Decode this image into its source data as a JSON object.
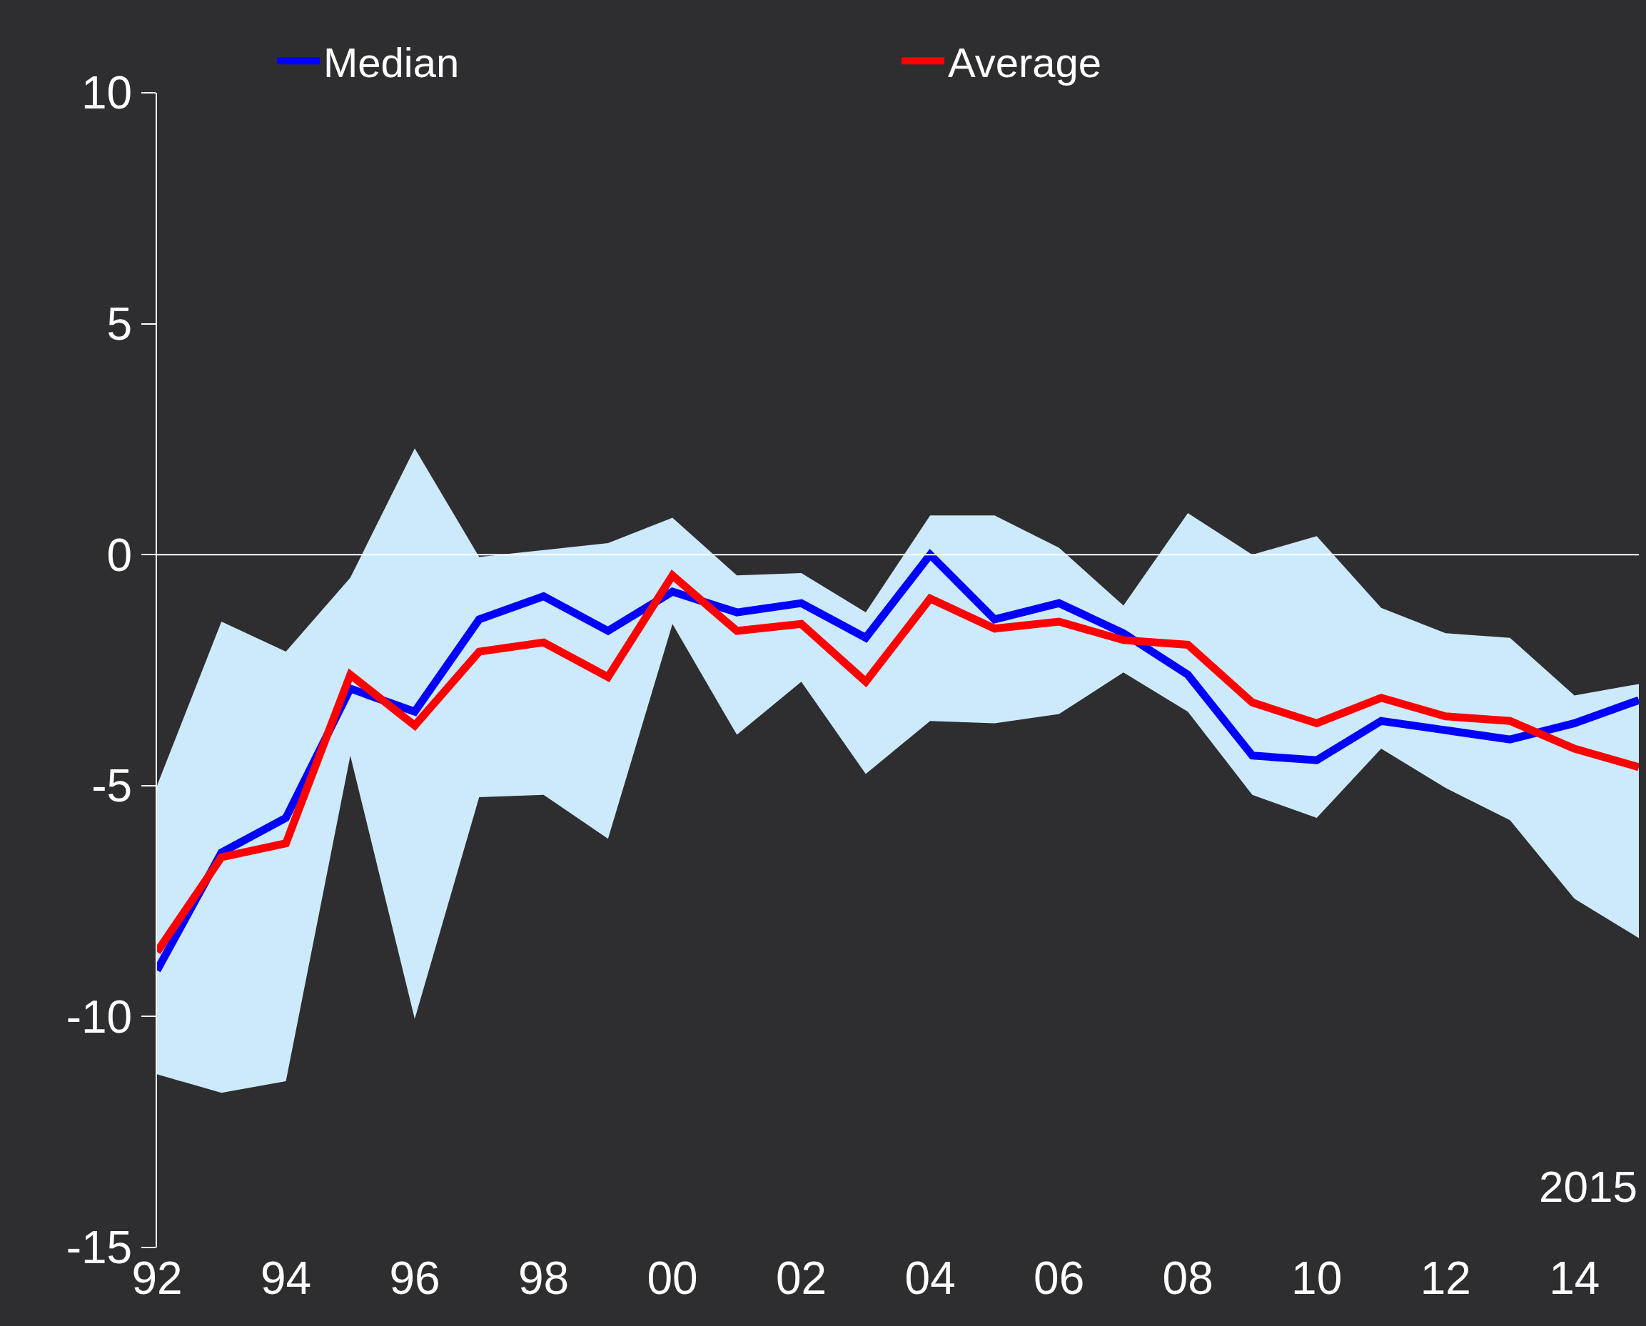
{
  "chart_data": {
    "type": "line",
    "annotations": [
      "2015"
    ],
    "x": [
      1992,
      1993,
      1994,
      1995,
      1996,
      1997,
      1998,
      1999,
      2000,
      2001,
      2002,
      2003,
      2004,
      2005,
      2006,
      2007,
      2008,
      2009,
      2010,
      2011,
      2012,
      2013,
      2014,
      2015
    ],
    "series": [
      {
        "name": "Median",
        "color": "#0000ff",
        "values": [
          -9.0,
          -6.45,
          -5.7,
          -2.9,
          -3.4,
          -1.4,
          -0.9,
          -1.65,
          -0.8,
          -1.25,
          -1.05,
          -1.8,
          0,
          -1.4,
          -1.05,
          -1.7,
          -2.6,
          -4.35,
          -4.45,
          -3.6,
          -3.8,
          -4.0,
          -3.65,
          -3.15
        ],
        "lower": [
          -11.25,
          -11.65,
          -11.4,
          -4.35,
          -10.05,
          -5.25,
          -5.2,
          -6.15,
          -1.5,
          -3.9,
          -2.75,
          -4.75,
          -3.6,
          -3.65,
          -3.45,
          -2.55,
          -3.4,
          -5.2,
          -5.7,
          -4.2,
          -5.05,
          -5.75,
          -7.45,
          -8.3
        ],
        "upper": [
          -5.0,
          -1.45,
          -2.1,
          -0.5,
          2.3,
          -0.05,
          0.1,
          0.25,
          0.8,
          -0.45,
          -0.4,
          -1.25,
          0.85,
          0.85,
          0.15,
          -1.1,
          0.9,
          0,
          0.4,
          -1.15,
          -1.7,
          -1.8,
          -3.05,
          -2.8
        ]
      },
      {
        "name": "Average",
        "color": "#ff0000",
        "values": [
          -8.6,
          -6.55,
          -6.25,
          -2.6,
          -3.7,
          -2.1,
          -1.9,
          -2.65,
          -0.45,
          -1.65,
          -1.5,
          -2.75,
          -0.95,
          -1.6,
          -1.45,
          -1.85,
          -1.95,
          -3.2,
          -3.65,
          -3.1,
          -3.5,
          -3.6,
          -4.2,
          -4.6
        ]
      }
    ],
    "xlim": [
      1992,
      2015
    ],
    "xticks": [
      {
        "value": 1992,
        "label": "92"
      },
      {
        "value": 1994,
        "label": "94"
      },
      {
        "value": 1996,
        "label": "96"
      },
      {
        "value": 1998,
        "label": "98"
      },
      {
        "value": 2000,
        "label": "00"
      },
      {
        "value": 2002,
        "label": "02"
      },
      {
        "value": 2004,
        "label": "04"
      },
      {
        "value": 2006,
        "label": "06"
      },
      {
        "value": 2008,
        "label": "08"
      },
      {
        "value": 2010,
        "label": "10"
      },
      {
        "value": 2012,
        "label": "12"
      },
      {
        "value": 2014,
        "label": "14"
      }
    ],
    "ylim": [
      -15,
      10
    ],
    "yticks": [
      -15,
      -10,
      -5,
      0,
      5,
      10
    ],
    "ref_lines": [
      {
        "axis": "y",
        "value": 0,
        "color": "#ffffff"
      }
    ],
    "legend": "top",
    "marker": "none",
    "line_style": "solid"
  }
}
